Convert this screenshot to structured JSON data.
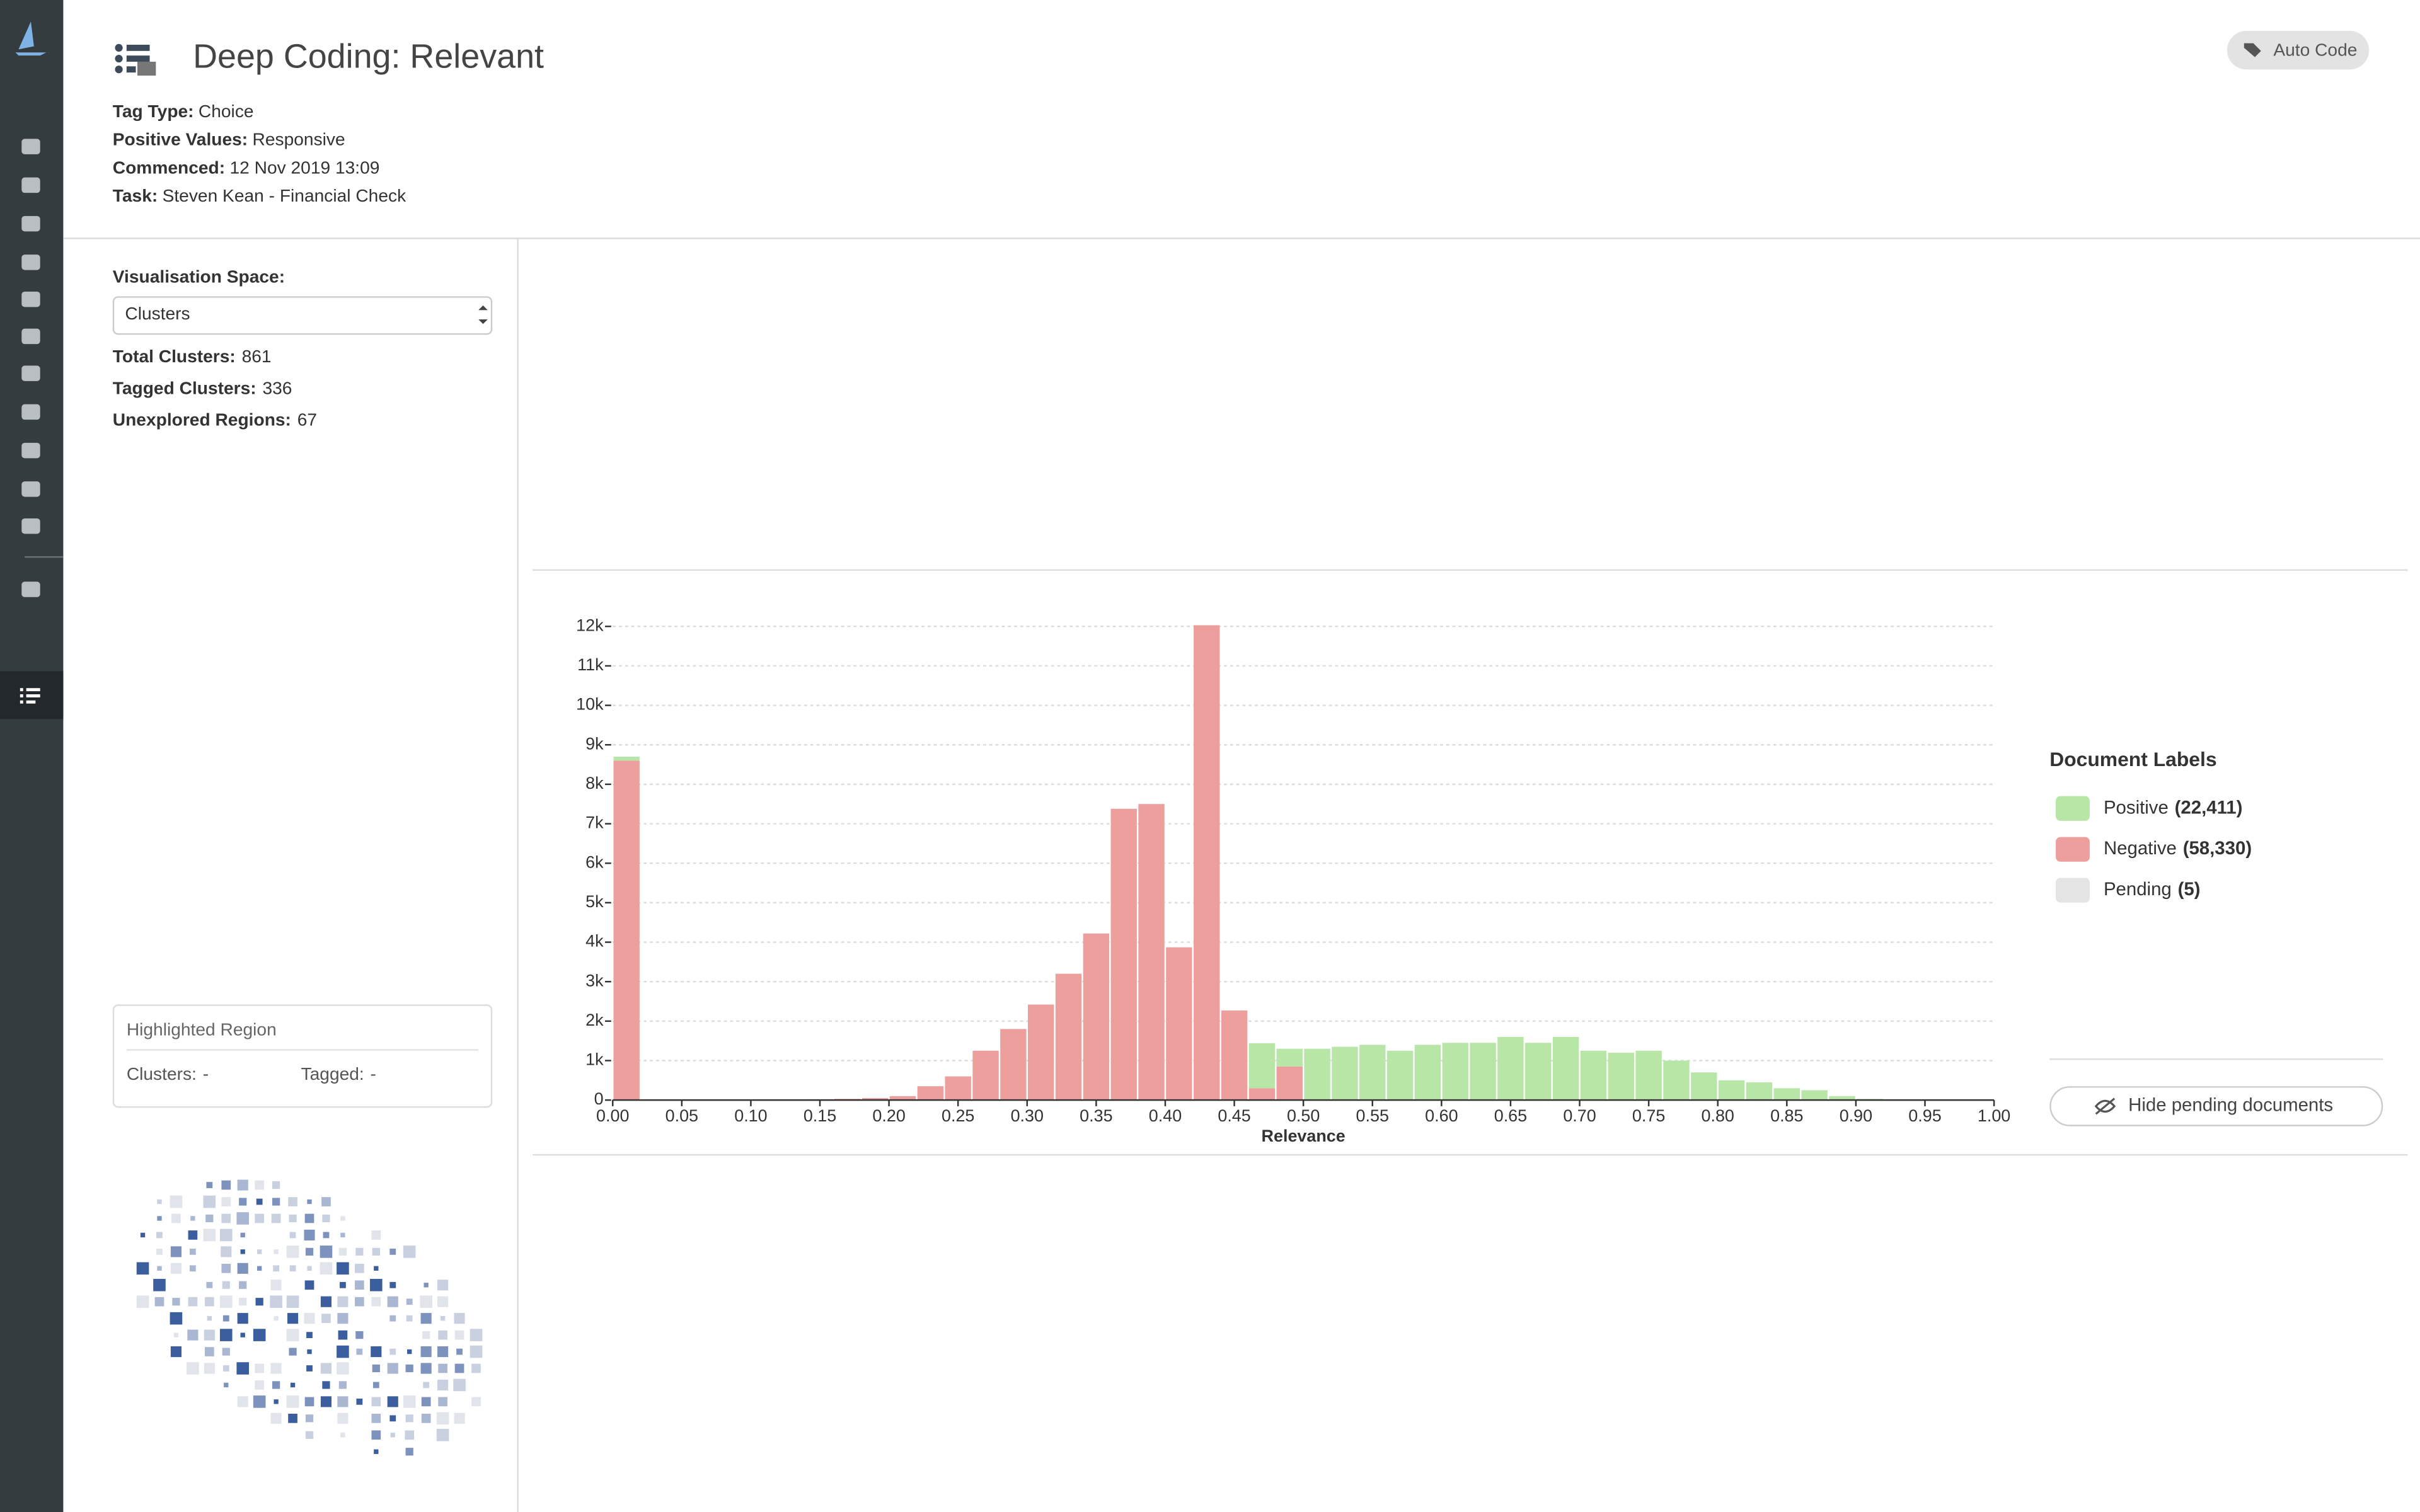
{
  "header": {
    "title": "Deep Coding: Relevant",
    "action": "Auto Code",
    "fields": [
      {
        "label": "Tag Type:",
        "value": "Choice"
      },
      {
        "label": "Positive Values:",
        "value": "Responsive"
      },
      {
        "label": "Commenced:",
        "value": "12 Nov 2019 13:09"
      },
      {
        "label": "Task:",
        "value": "Steven Kean - Financial Check"
      }
    ]
  },
  "panel": {
    "space_label": "Visualisation Space:",
    "space_value": "Clusters",
    "stats": [
      {
        "label": "Total Clusters:",
        "value": "861"
      },
      {
        "label": "Tagged Clusters:",
        "value": "336"
      },
      {
        "label": "Unexplored Regions:",
        "value": "67"
      }
    ],
    "highlight": {
      "title": "Highlighted Region",
      "clusters_label": "Clusters:",
      "clusters_value": "-",
      "tagged_label": "Tagged:",
      "tagged_value": "-"
    }
  },
  "chart_data": {
    "type": "histogram",
    "x_label": "Relevance",
    "bins": [
      0,
      0.02,
      0.04,
      0.06,
      0.08,
      0.1,
      0.12,
      0.14,
      0.16,
      0.18,
      0.2,
      0.22,
      0.24,
      0.26,
      0.28,
      0.3,
      0.32,
      0.34,
      0.36,
      0.38,
      0.4,
      0.42,
      0.44,
      0.46,
      0.48,
      0.5,
      0.52,
      0.54,
      0.56,
      0.58,
      0.6,
      0.62,
      0.64,
      0.66,
      0.68,
      0.7,
      0.72,
      0.74,
      0.76,
      0.78,
      0.8,
      0.82,
      0.84,
      0.86,
      0.88,
      0.9,
      0.92,
      0.94,
      0.96,
      0.98,
      1
    ],
    "series": [
      {
        "name": "Negative",
        "color": "#ec9f9c",
        "count_label": "(58,330)",
        "values": [
          8600,
          0,
          0,
          0,
          0,
          0,
          0,
          20,
          30,
          50,
          100,
          350,
          600,
          1250,
          1800,
          2420,
          3200,
          4220,
          7380,
          7500,
          3870,
          12030,
          2270,
          300,
          850,
          0,
          0,
          0,
          0,
          0,
          0,
          0,
          0,
          0,
          0,
          0,
          0,
          0,
          0,
          0,
          0,
          0,
          0,
          0,
          0,
          0,
          0,
          0,
          0,
          0
        ]
      },
      {
        "name": "Positive",
        "color": "#b7e6a6",
        "count_label": "(22,411)",
        "values": [
          100,
          0,
          0,
          0,
          0,
          0,
          0,
          0,
          0,
          0,
          0,
          0,
          0,
          0,
          0,
          0,
          0,
          0,
          0,
          0,
          0,
          0,
          0,
          1140,
          450,
          1300,
          1350,
          1400,
          1250,
          1400,
          1450,
          1450,
          1600,
          1450,
          1600,
          1250,
          1200,
          1250,
          1000,
          700,
          500,
          450,
          300,
          250,
          100,
          30,
          10,
          0,
          0,
          0
        ]
      }
    ],
    "legend_title": "Document Labels",
    "legend_order": [
      1,
      0
    ],
    "extra_legend": {
      "name": "Pending",
      "count_label": "(5)",
      "color": "#e4e4e4"
    },
    "button": "Hide pending documents",
    "xlim": [
      0,
      1
    ],
    "ylim": [
      0,
      12000
    ],
    "xticks": [
      {
        "value": 0,
        "label": "0.00"
      },
      0.05,
      {
        "value": 0.1,
        "label": "0.10"
      },
      0.15,
      {
        "value": 0.2,
        "label": "0.20"
      },
      0.25,
      {
        "value": 0.3,
        "label": "0.30"
      },
      0.35,
      {
        "value": 0.4,
        "label": "0.40"
      },
      0.45,
      {
        "value": 0.5,
        "label": "0.50"
      },
      0.55,
      {
        "value": 0.6,
        "label": "0.60"
      },
      0.65,
      {
        "value": 0.7,
        "label": "0.70"
      },
      0.75,
      {
        "value": 0.8,
        "label": "0.80"
      },
      0.85,
      {
        "value": 0.9,
        "label": "0.90"
      },
      0.95,
      {
        "value": 1,
        "label": "1.00"
      }
    ],
    "yticks": [
      0,
      {
        "value": 1000,
        "label": "1k"
      },
      {
        "value": 2000,
        "label": "2k"
      },
      {
        "value": 3000,
        "label": "3k"
      },
      {
        "value": 4000,
        "label": "4k"
      },
      {
        "value": 5000,
        "label": "5k"
      },
      {
        "value": 6000,
        "label": "6k"
      },
      {
        "value": 7000,
        "label": "7k"
      },
      {
        "value": 8000,
        "label": "8k"
      },
      {
        "value": 9000,
        "label": "9k"
      },
      {
        "value": 10000,
        "label": "10k"
      },
      {
        "value": 11000,
        "label": "11k"
      },
      {
        "value": 12000,
        "label": "12k"
      }
    ],
    "grid": true
  }
}
